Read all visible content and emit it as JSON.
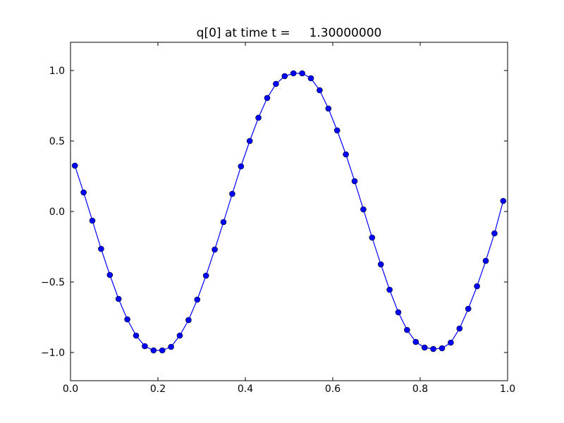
{
  "chart_data": {
    "type": "line",
    "title": "q[0] at time t =     1.30000000",
    "x": [
      0.01,
      0.03,
      0.05,
      0.07,
      0.09,
      0.11,
      0.13,
      0.15,
      0.17,
      0.19,
      0.21,
      0.23,
      0.25,
      0.27,
      0.29,
      0.31,
      0.33,
      0.35,
      0.37,
      0.39,
      0.41,
      0.43,
      0.45,
      0.47,
      0.49,
      0.51,
      0.53,
      0.55,
      0.57,
      0.59,
      0.61,
      0.63,
      0.65,
      0.67,
      0.69,
      0.71,
      0.73,
      0.75,
      0.77,
      0.79,
      0.81,
      0.83,
      0.85,
      0.87,
      0.89,
      0.91,
      0.93,
      0.95,
      0.97,
      0.99
    ],
    "series": [
      {
        "color": "#0000ff",
        "values": [
          0.325,
          0.135,
          -0.065,
          -0.265,
          -0.45,
          -0.62,
          -0.765,
          -0.88,
          -0.955,
          -0.985,
          -0.985,
          -0.96,
          -0.88,
          -0.77,
          -0.625,
          -0.455,
          -0.27,
          -0.075,
          0.125,
          0.32,
          0.5,
          0.665,
          0.805,
          0.905,
          0.96,
          0.98,
          0.98,
          0.945,
          0.86,
          0.73,
          0.575,
          0.405,
          0.215,
          0.015,
          -0.185,
          -0.375,
          -0.555,
          -0.715,
          -0.84,
          -0.925,
          -0.965,
          -0.975,
          -0.97,
          -0.93,
          -0.83,
          -0.69,
          -0.53,
          -0.35,
          -0.155,
          0.075
        ]
      }
    ],
    "xlim": [
      0,
      1
    ],
    "ylim": [
      -1.2,
      1.2
    ],
    "xticks": [
      {
        "value": 0,
        "label": "0.0"
      },
      {
        "value": 0.2,
        "label": "0.2"
      },
      {
        "value": 0.4,
        "label": "0.4"
      },
      {
        "value": 0.6,
        "label": "0.6"
      },
      {
        "value": 0.8,
        "label": "0.8"
      },
      {
        "value": 1,
        "label": "1.0"
      }
    ],
    "yticks": [
      {
        "value": -1,
        "label": "−1.0"
      },
      {
        "value": -0.5,
        "label": "−0.5"
      },
      {
        "value": 0,
        "label": "0.0"
      },
      {
        "value": 0.5,
        "label": "0.5"
      },
      {
        "value": 1,
        "label": "1.0"
      }
    ],
    "grid": false
  }
}
